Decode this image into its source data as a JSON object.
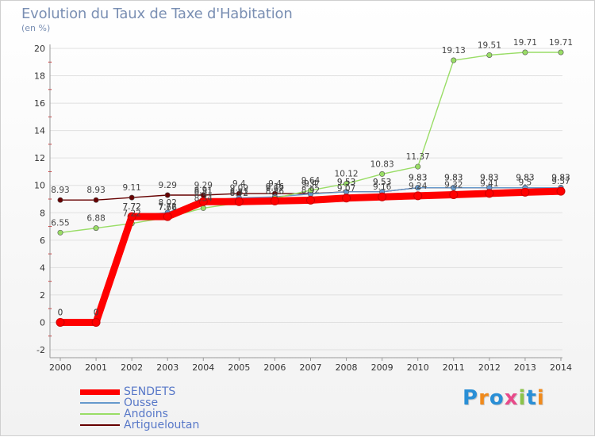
{
  "header": {
    "title": "Evolution du Taux de Taxe d'Habitation",
    "unit": "(en %)"
  },
  "logo": {
    "text": "Proxiti"
  },
  "colors": {
    "SENDETS": "#ff0000",
    "Ousse": "#6699cc",
    "Andoins": "#99dd66",
    "Artigueloutan": "#660000",
    "axis": "#999999",
    "grid": "#e0e0e0",
    "tick_red": "#cc2222"
  },
  "legend": [
    {
      "label": "SENDETS"
    },
    {
      "label": "Ousse"
    },
    {
      "label": "Andoins"
    },
    {
      "label": "Artigueloutan"
    }
  ],
  "chart_data": {
    "type": "line",
    "title": "Evolution du Taux de Taxe d'Habitation",
    "ylabel": "(en %)",
    "xlabel": "",
    "ylim": [
      -2,
      20
    ],
    "yticks": [
      -2,
      0,
      2,
      4,
      6,
      8,
      10,
      12,
      14,
      16,
      18,
      20
    ],
    "grid": true,
    "legend_position": "bottom-left",
    "x": [
      "2000",
      "2001",
      "2002",
      "2003",
      "2004",
      "2005",
      "2006",
      "2007",
      "2008",
      "2009",
      "2010",
      "2011",
      "2012",
      "2013",
      "2014"
    ],
    "series": [
      {
        "name": "SENDETS",
        "values": [
          0,
          0,
          7.72,
          7.72,
          8.81,
          8.81,
          8.86,
          8.92,
          9.07,
          9.16,
          9.24,
          9.32,
          9.41,
          9.5,
          9.57
        ],
        "labels": [
          "0",
          "0",
          "7.72",
          "7.72",
          "8.81",
          "8.81",
          "8.86",
          "8.92",
          "9.07",
          "9.16",
          "9.24",
          "9.32",
          "9.41",
          "9.5",
          "9.57"
        ]
      },
      {
        "name": "Ousse",
        "values": [
          0,
          0,
          7.72,
          8.02,
          8.91,
          9.09,
          9.16,
          9.37,
          9.53,
          9.53,
          9.83,
          9.83,
          9.83,
          9.83,
          9.83
        ],
        "labels": [
          "0",
          "0",
          "7.72",
          "8.02",
          "8.91",
          "9.09",
          "9.16",
          "9.37",
          "9.53",
          "9.53",
          "9.83",
          "9.83",
          "9.83",
          "9.83",
          "9.83"
        ]
      },
      {
        "name": "Andoins",
        "values": [
          6.55,
          6.88,
          7.22,
          7.66,
          8.34,
          8.72,
          9.07,
          9.64,
          10.12,
          10.83,
          11.37,
          19.13,
          19.51,
          19.71,
          19.71
        ],
        "labels": [
          "6.55",
          "6.88",
          "7.22",
          "7.66",
          "8.34",
          "8.72",
          "9.07",
          "9.64",
          "10.12",
          "10.83",
          "11.37",
          "19.13",
          "19.51",
          "19.71",
          "19.71"
        ]
      },
      {
        "name": "Artigueloutan",
        "values": [
          8.93,
          8.93,
          9.11,
          9.29,
          9.29,
          9.4,
          9.4,
          9.4,
          9.53,
          9.53,
          9.83,
          9.83,
          9.83,
          9.83,
          9.83
        ],
        "labels": [
          "8.93",
          "8.93",
          "9.11",
          "9.29",
          "9.29",
          "9.4",
          "9.4",
          "9.4",
          "9.53",
          "9.53",
          "9.83",
          "9.83",
          "9.83",
          "9.83",
          "9.83"
        ]
      }
    ]
  }
}
